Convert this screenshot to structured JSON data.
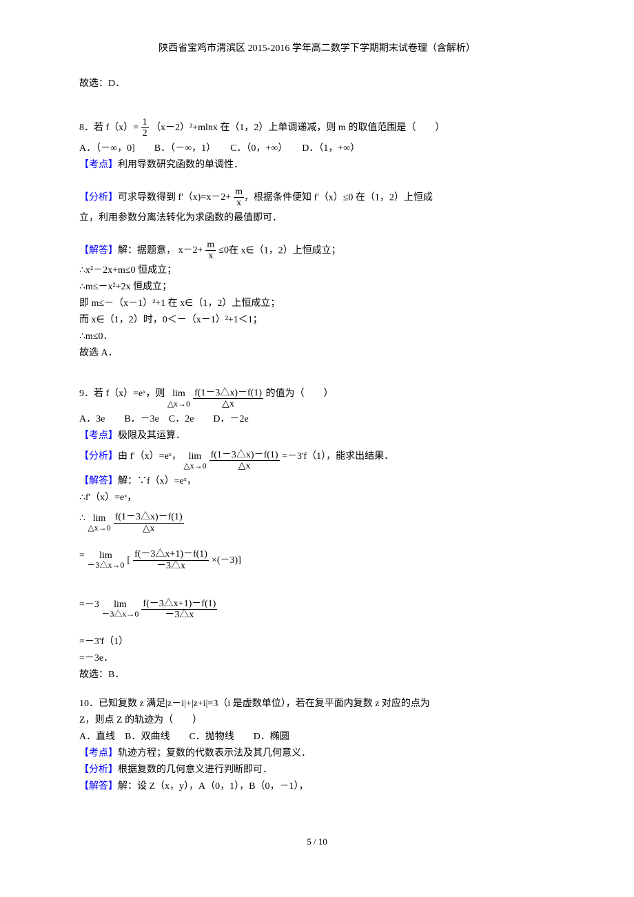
{
  "colors": {
    "text": "#000000",
    "link": "#0000ff",
    "background": "#ffffff"
  },
  "typography": {
    "body_font_family": "SimSun",
    "body_fontsize_pt": 10.5,
    "header_fontsize_pt": 10.5,
    "sup_fontsize_pt": 7
  },
  "header": {
    "title": "陕西省宝鸡市渭滨区 2015-2016 学年高二数学下学期期末试卷理（含解析）"
  },
  "block_ans_d": {
    "text": "故选：D．"
  },
  "q8": {
    "stem_prefix": "8．若 f（x）=",
    "frac_num": "1",
    "frac_den": "2",
    "stem_suffix": "（x－2）²+mlnx 在（1，2）上单调递减，则 m 的取值范围是（　　）",
    "options": "A．（－∞，0]　　B．（－∞，1）　　C．（0，+∞）　　D．（1，+∞）",
    "kd_label": "【考点】",
    "kd_text": "利用导数研究函数的单调性．",
    "fx_label": "【分析】",
    "fx_prefix": "可求导数得到",
    "fx_deriv_lhs": "f'（x)=x－2+",
    "fx_frac_num": "m",
    "fx_frac_den": "x",
    "fx_suffix1": "，根据条件便知 f'（x）≤0 在（1，2）上恒成",
    "fx_line2": "立，利用参数分离法转化为求函数的最值即可．",
    "jd_label": "【解答】",
    "jd_l1_prefix": "解：据题意，",
    "jd_l1_expr": "x－2+",
    "jd_l1_frac_num": "m",
    "jd_l1_frac_den": "x",
    "jd_l1_leq0": "≤0",
    "jd_l1_suffix": "在 x∈（1，2）上恒成立；",
    "jd_l2": "∴x²－2x+m≤0 恒成立；",
    "jd_l3": "∴m≤－x²+2x 恒成立；",
    "jd_l4": "即 m≤－（x－1）²+1 在 x∈（1，2）上恒成立；",
    "jd_l5": "而 x∈（1，2）时，0＜－（x－1）²+1＜1；",
    "jd_l6": "∴m≤0．",
    "jd_l7": "故选 A．"
  },
  "q9": {
    "stem_prefix": "9．若 f（x）=eˣ，则",
    "lim_word": "lim",
    "lim_under": "△x→0",
    "frac_num": "f(1－3△x)－f(1)",
    "frac_den": "△x",
    "stem_suffix": "的值为（　　）",
    "options": "A．3e　　B．－3e　C．2e　　D．－2e",
    "kd_label": "【考点】",
    "kd_text": "极限及其运算．",
    "fx_label": "【分析】",
    "fx_prefix": "由 f'（x）=eˣ，",
    "fx_eq_rhs": "=－3'f（1），能求出结果．",
    "jd_label": "【解答】",
    "jd_l1": "解：∵f（x）=eˣ，",
    "jd_l2": "∴f'（x）=eˣ，",
    "jd_l3_prefix": "∴",
    "jd_block2_prefix": "=",
    "jd_block2_under": "－3△x→0",
    "jd_block2_open": "[",
    "jd_block2_num": "f(－3△x+1)－f(1)",
    "jd_block2_den": "－3△x",
    "jd_block2_mult": "×(－3)]",
    "jd_block3_prefix": "=－3",
    "jd_block3_under": "－3△x→0",
    "jd_block3_num": "f(－3△x+1)－f(1)",
    "jd_block3_den": "－3△x",
    "jd_l6": "=－3'f（1）",
    "jd_l7": "=－3e．",
    "jd_l8": "故选：B．"
  },
  "q10": {
    "l1": "10．已知复数 z 满足|z－i|+|z+i|=3（i 是虚数单位），若在复平面内复数 z 对应的点为",
    "l2": "Z，则点 Z 的轨迹为（　　）",
    "options": "A．直线　B．双曲线　　C．抛物线　　D．椭圆",
    "kd_label": "【考点】",
    "kd_text": "轨迹方程；复数的代数表示法及其几何意义．",
    "fx_label": "【分析】",
    "fx_text": "根据复数的几何意义进行判断即可．",
    "jd_label": "【解答】",
    "jd_text": "解：设 Z（x，y），A（0，1），B（0，－1），"
  },
  "footer": {
    "page_current": "5",
    "sep": " / ",
    "page_total": "10"
  }
}
